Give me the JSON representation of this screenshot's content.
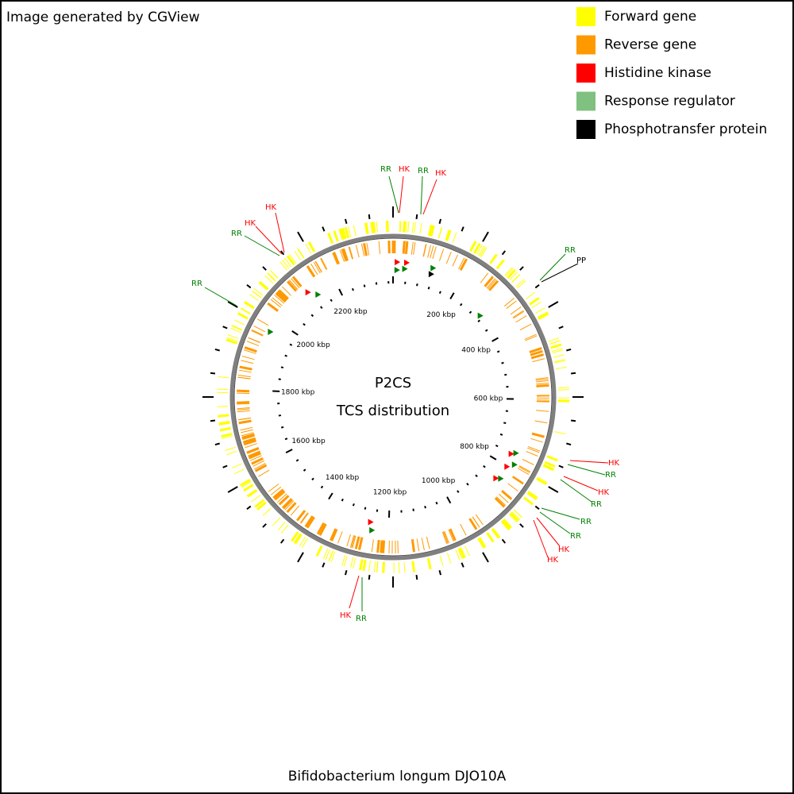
{
  "header": {
    "credit": "Image generated by CGView"
  },
  "legend": {
    "items": [
      {
        "label": "Forward gene",
        "color": "#ffff00"
      },
      {
        "label": "Reverse gene",
        "color": "#ff9900"
      },
      {
        "label": "Histidine kinase",
        "color": "#ff0000"
      },
      {
        "label": "Response regulator",
        "color": "#80c080"
      },
      {
        "label": "Phosphotransfer protein",
        "color": "#000000"
      }
    ]
  },
  "center": {
    "title": "P2CS",
    "subtitle": "TCS distribution"
  },
  "ruler": {
    "labels": [
      "200 kbp",
      "400 kbp",
      "600 kbp",
      "800 kbp",
      "1000 kbp",
      "1200 kbp",
      "1400 kbp",
      "1600 kbp",
      "1800 kbp",
      "2000 kbp",
      "2200 kbp"
    ]
  },
  "callouts": [
    "RR",
    "HK",
    "RR",
    "HK",
    "RR",
    "PP",
    "HK",
    "HK",
    "RR",
    "RR",
    "HK",
    "RR",
    "HK",
    "RR",
    "RR",
    "RR",
    "HK",
    "HK",
    "HK",
    "RR"
  ],
  "footer": {
    "caption": "Bifidobacterium longum DJO10A"
  }
}
